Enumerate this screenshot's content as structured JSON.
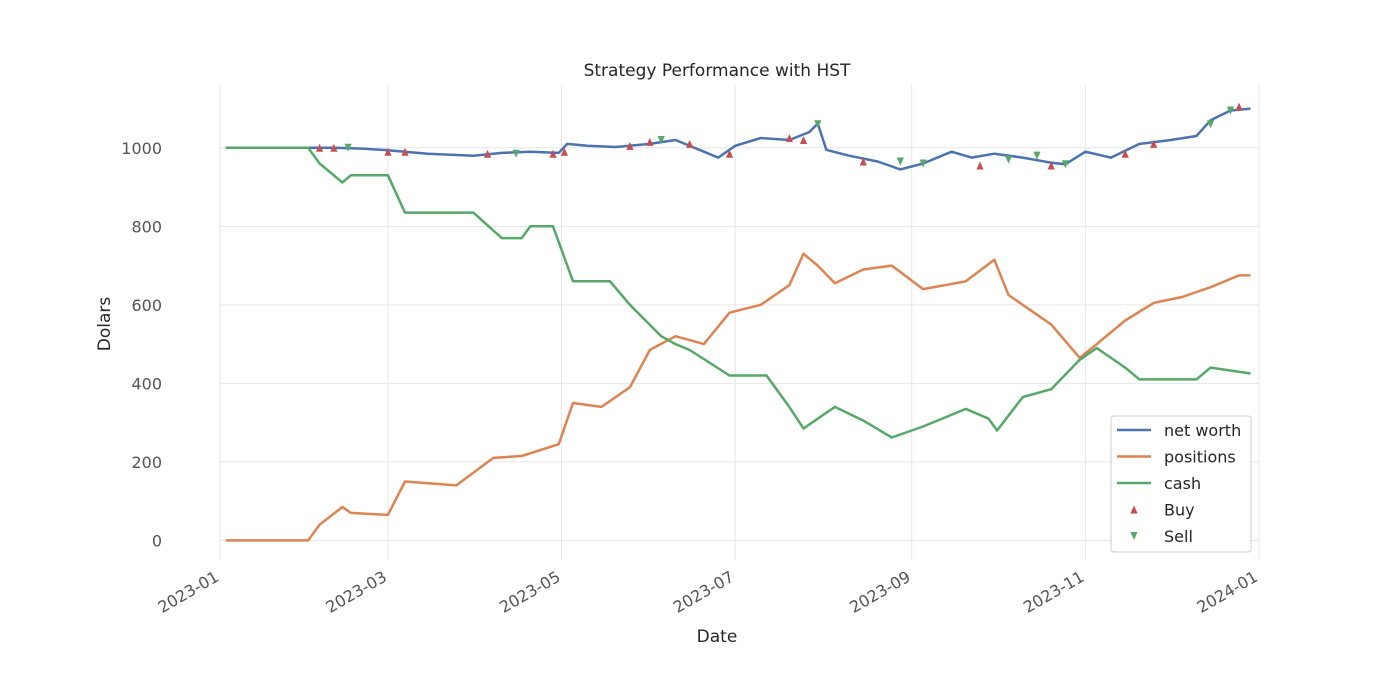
{
  "chart_data": {
    "type": "line",
    "title": "Strategy Performance with HST",
    "xlabel": "Date",
    "ylabel": "Dolars",
    "xlim": [
      "2023-01-01",
      "2024-01-01"
    ],
    "ylim": [
      -50,
      1160
    ],
    "x_ticks": [
      "2023-01",
      "2023-03",
      "2023-05",
      "2023-07",
      "2023-09",
      "2023-11",
      "2024-01"
    ],
    "y_ticks": [
      0,
      200,
      400,
      600,
      800,
      1000
    ],
    "grid": true,
    "legend_position": "lower-right",
    "series": [
      {
        "name": "net worth",
        "color": "#4c72b0",
        "points": [
          [
            "2023-01-03",
            1000
          ],
          [
            "2023-02-01",
            1000
          ],
          [
            "2023-02-10",
            1000
          ],
          [
            "2023-02-20",
            998
          ],
          [
            "2023-03-01",
            994
          ],
          [
            "2023-03-15",
            985
          ],
          [
            "2023-03-31",
            980
          ],
          [
            "2023-04-10",
            987
          ],
          [
            "2023-04-20",
            990
          ],
          [
            "2023-04-30",
            987
          ],
          [
            "2023-05-03",
            1010
          ],
          [
            "2023-05-10",
            1005
          ],
          [
            "2023-05-20",
            1002
          ],
          [
            "2023-06-01",
            1010
          ],
          [
            "2023-06-10",
            1020
          ],
          [
            "2023-06-20",
            990
          ],
          [
            "2023-06-25",
            975
          ],
          [
            "2023-07-01",
            1005
          ],
          [
            "2023-07-10",
            1025
          ],
          [
            "2023-07-20",
            1020
          ],
          [
            "2023-07-27",
            1040
          ],
          [
            "2023-07-30",
            1062
          ],
          [
            "2023-08-02",
            995
          ],
          [
            "2023-08-10",
            980
          ],
          [
            "2023-08-20",
            965
          ],
          [
            "2023-08-28",
            945
          ],
          [
            "2023-09-05",
            960
          ],
          [
            "2023-09-15",
            990
          ],
          [
            "2023-09-22",
            975
          ],
          [
            "2023-09-30",
            985
          ],
          [
            "2023-10-10",
            975
          ],
          [
            "2023-10-20",
            962
          ],
          [
            "2023-10-25",
            958
          ],
          [
            "2023-11-01",
            990
          ],
          [
            "2023-11-10",
            975
          ],
          [
            "2023-11-20",
            1010
          ],
          [
            "2023-12-01",
            1020
          ],
          [
            "2023-12-10",
            1030
          ],
          [
            "2023-12-15",
            1070
          ],
          [
            "2023-12-22",
            1095
          ],
          [
            "2023-12-29",
            1100
          ]
        ]
      },
      {
        "name": "positions",
        "color": "#dd8452",
        "points": [
          [
            "2023-01-03",
            0
          ],
          [
            "2023-02-01",
            0
          ],
          [
            "2023-02-05",
            40
          ],
          [
            "2023-02-13",
            85
          ],
          [
            "2023-02-16",
            70
          ],
          [
            "2023-03-01",
            65
          ],
          [
            "2023-03-07",
            150
          ],
          [
            "2023-03-25",
            140
          ],
          [
            "2023-04-07",
            210
          ],
          [
            "2023-04-17",
            215
          ],
          [
            "2023-04-30",
            245
          ],
          [
            "2023-05-05",
            350
          ],
          [
            "2023-05-15",
            340
          ],
          [
            "2023-05-25",
            390
          ],
          [
            "2023-06-01",
            485
          ],
          [
            "2023-06-10",
            520
          ],
          [
            "2023-06-20",
            500
          ],
          [
            "2023-06-29",
            580
          ],
          [
            "2023-07-10",
            600
          ],
          [
            "2023-07-20",
            650
          ],
          [
            "2023-07-25",
            730
          ],
          [
            "2023-07-30",
            700
          ],
          [
            "2023-08-05",
            655
          ],
          [
            "2023-08-15",
            690
          ],
          [
            "2023-08-25",
            700
          ],
          [
            "2023-09-05",
            640
          ],
          [
            "2023-09-20",
            660
          ],
          [
            "2023-09-30",
            715
          ],
          [
            "2023-10-05",
            625
          ],
          [
            "2023-10-20",
            550
          ],
          [
            "2023-10-30",
            465
          ],
          [
            "2023-11-05",
            500
          ],
          [
            "2023-11-15",
            560
          ],
          [
            "2023-11-25",
            605
          ],
          [
            "2023-12-05",
            620
          ],
          [
            "2023-12-15",
            645
          ],
          [
            "2023-12-25",
            675
          ],
          [
            "2023-12-29",
            675
          ]
        ]
      },
      {
        "name": "cash",
        "color": "#55a868",
        "points": [
          [
            "2023-01-03",
            1000
          ],
          [
            "2023-02-01",
            1000
          ],
          [
            "2023-02-05",
            960
          ],
          [
            "2023-02-13",
            912
          ],
          [
            "2023-02-16",
            930
          ],
          [
            "2023-03-01",
            930
          ],
          [
            "2023-03-07",
            835
          ],
          [
            "2023-03-31",
            835
          ],
          [
            "2023-04-10",
            770
          ],
          [
            "2023-04-17",
            770
          ],
          [
            "2023-04-20",
            800
          ],
          [
            "2023-04-28",
            800
          ],
          [
            "2023-05-05",
            660
          ],
          [
            "2023-05-18",
            660
          ],
          [
            "2023-05-25",
            600
          ],
          [
            "2023-06-05",
            520
          ],
          [
            "2023-06-10",
            500
          ],
          [
            "2023-06-15",
            485
          ],
          [
            "2023-06-29",
            420
          ],
          [
            "2023-07-12",
            420
          ],
          [
            "2023-07-20",
            340
          ],
          [
            "2023-07-25",
            285
          ],
          [
            "2023-08-05",
            340
          ],
          [
            "2023-08-15",
            305
          ],
          [
            "2023-08-25",
            262
          ],
          [
            "2023-09-05",
            290
          ],
          [
            "2023-09-20",
            335
          ],
          [
            "2023-09-28",
            310
          ],
          [
            "2023-10-01",
            280
          ],
          [
            "2023-10-10",
            365
          ],
          [
            "2023-10-20",
            385
          ],
          [
            "2023-10-30",
            460
          ],
          [
            "2023-11-05",
            490
          ],
          [
            "2023-11-15",
            440
          ],
          [
            "2023-11-20",
            410
          ],
          [
            "2023-12-10",
            410
          ],
          [
            "2023-12-15",
            440
          ],
          [
            "2023-12-29",
            425
          ]
        ]
      }
    ],
    "markers": [
      {
        "name": "Buy",
        "color": "#c44e52",
        "shape": "triangle-up",
        "points": [
          [
            "2023-02-05",
            1000
          ],
          [
            "2023-02-10",
            1000
          ],
          [
            "2023-03-01",
            990
          ],
          [
            "2023-03-07",
            990
          ],
          [
            "2023-04-05",
            985
          ],
          [
            "2023-04-28",
            985
          ],
          [
            "2023-05-02",
            990
          ],
          [
            "2023-05-25",
            1005
          ],
          [
            "2023-06-01",
            1015
          ],
          [
            "2023-06-15",
            1010
          ],
          [
            "2023-06-29",
            985
          ],
          [
            "2023-07-20",
            1025
          ],
          [
            "2023-07-25",
            1020
          ],
          [
            "2023-08-15",
            965
          ],
          [
            "2023-09-25",
            955
          ],
          [
            "2023-10-20",
            955
          ],
          [
            "2023-11-15",
            985
          ],
          [
            "2023-11-25",
            1010
          ],
          [
            "2023-12-25",
            1105
          ]
        ]
      },
      {
        "name": "Sell",
        "color": "#55a868",
        "shape": "triangle-down",
        "points": [
          [
            "2023-02-15",
            1000
          ],
          [
            "2023-04-15",
            985
          ],
          [
            "2023-06-05",
            1020
          ],
          [
            "2023-07-30",
            1060
          ],
          [
            "2023-08-28",
            965
          ],
          [
            "2023-09-05",
            960
          ],
          [
            "2023-10-05",
            970
          ],
          [
            "2023-10-15",
            980
          ],
          [
            "2023-10-25",
            958
          ],
          [
            "2023-12-15",
            1060
          ],
          [
            "2023-12-22",
            1095
          ]
        ]
      }
    ]
  }
}
